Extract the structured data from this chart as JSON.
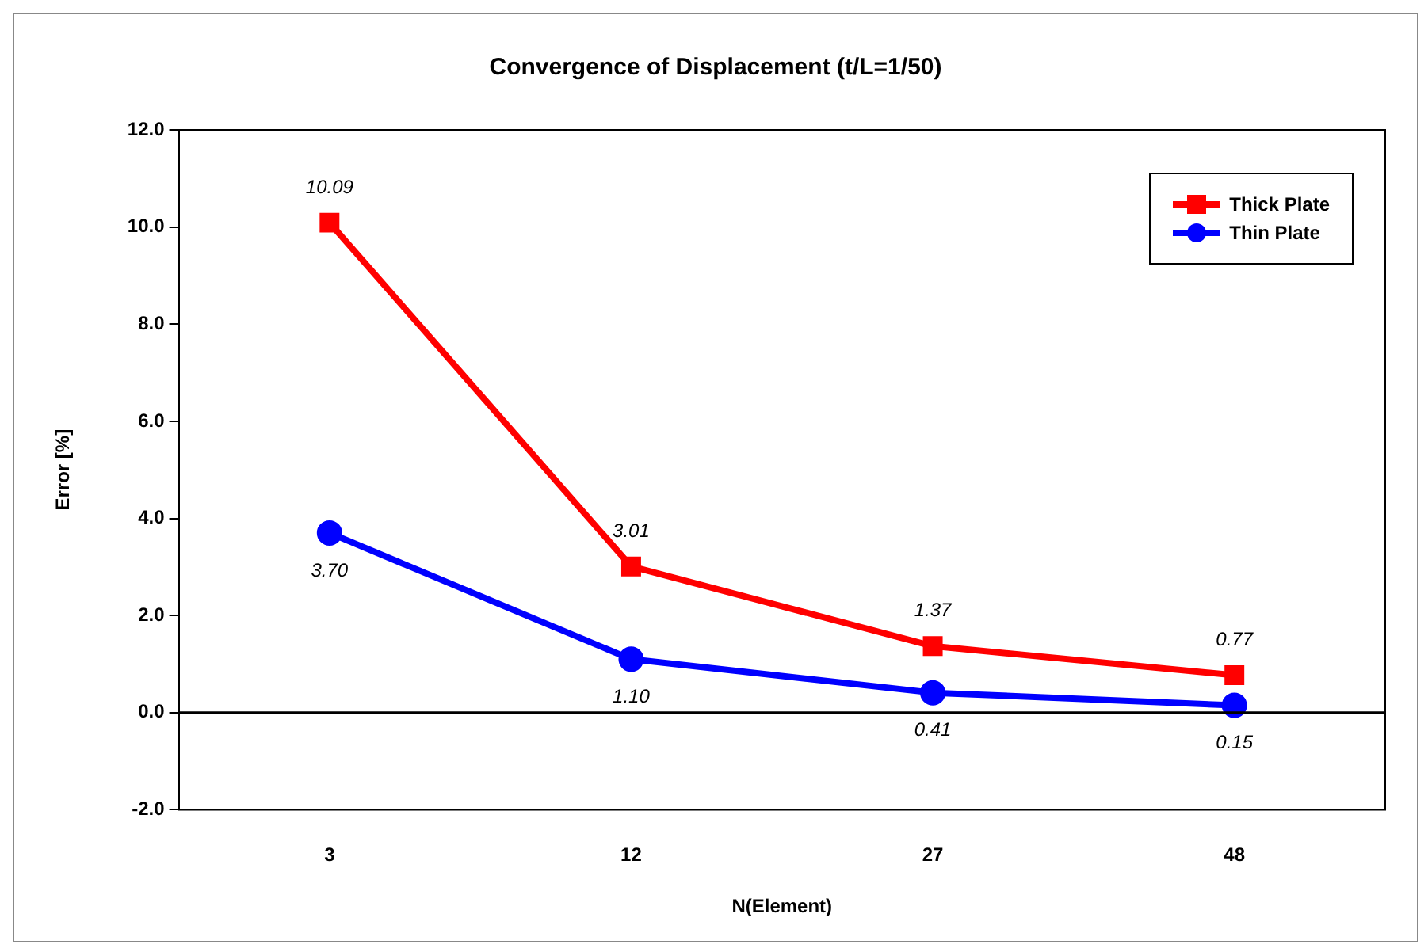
{
  "chart_data": {
    "type": "line",
    "title": "Convergence of Displacement (t/L=1/50)",
    "xlabel": "N(Element)",
    "ylabel": "Error [%]",
    "categories": [
      "3",
      "12",
      "27",
      "48"
    ],
    "series": [
      {
        "name": "Thick Plate",
        "color": "#ff0000",
        "marker": "square",
        "values": [
          10.09,
          3.01,
          1.37,
          0.77
        ],
        "value_labels": [
          "10.09",
          "3.01",
          "1.37",
          "0.77"
        ]
      },
      {
        "name": "Thin Plate",
        "color": "#0000ff",
        "marker": "circle",
        "values": [
          3.7,
          1.1,
          0.41,
          0.15
        ],
        "value_labels": [
          "3.70",
          "1.10",
          "0.41",
          "0.15"
        ]
      }
    ],
    "ylim": [
      -2,
      12
    ],
    "yticks": [
      {
        "value": -2,
        "label": "-2.0"
      },
      {
        "value": 0,
        "label": "0.0"
      },
      {
        "value": 2,
        "label": "2.0"
      },
      {
        "value": 4,
        "label": "4.0"
      },
      {
        "value": 6,
        "label": "6.0"
      },
      {
        "value": 8,
        "label": "8.0"
      },
      {
        "value": 10,
        "label": "10.0"
      },
      {
        "value": 12,
        "label": "12.0"
      }
    ],
    "ref_lines": [
      {
        "axis": "y",
        "value": 0,
        "color": "#000000"
      }
    ],
    "grid": false,
    "legend": "top right",
    "line_style": "solid"
  }
}
